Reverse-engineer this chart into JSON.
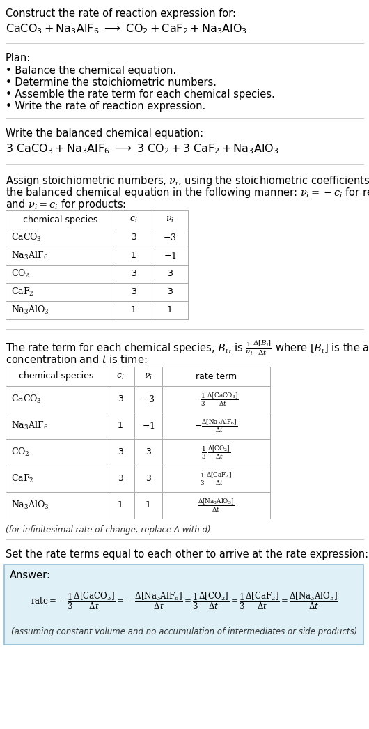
{
  "title_line1": "Construct the rate of reaction expression for:",
  "plan_header": "Plan:",
  "plan_items": [
    "• Balance the chemical equation.",
    "• Determine the stoichiometric numbers.",
    "• Assemble the rate term for each chemical species.",
    "• Write the rate of reaction expression."
  ],
  "balanced_header": "Write the balanced chemical equation:",
  "table1_rows": [
    [
      "CaCO_3",
      "3",
      "-3"
    ],
    [
      "Na_3AlF_6",
      "1",
      "-1"
    ],
    [
      "CO_2",
      "3",
      "3"
    ],
    [
      "CaF_2",
      "3",
      "3"
    ],
    [
      "Na_3AlO_3",
      "1",
      "1"
    ]
  ],
  "table2_rows": [
    [
      "CaCO_3",
      "3",
      "-3",
      "rt1"
    ],
    [
      "Na_3AlF_6",
      "1",
      "-1",
      "rt2"
    ],
    [
      "CO_2",
      "3",
      "3",
      "rt3"
    ],
    [
      "CaF_2",
      "3",
      "3",
      "rt4"
    ],
    [
      "Na_3AlO_3",
      "1",
      "1",
      "rt5"
    ]
  ],
  "infinitesimal_note": "(for infinitesimal rate of change, replace Δ with d)",
  "set_equal_text": "Set the rate terms equal to each other to arrive at the rate expression:",
  "answer_label": "Answer:",
  "assuming_note": "(assuming constant volume and no accumulation of intermediates or side products)",
  "bg_color": "#ffffff",
  "text_color": "#000000",
  "table_line_color": "#aaaaaa",
  "answer_box_fill": "#dff0f7",
  "answer_box_edge": "#90bcd4",
  "hline_color": "#cccccc"
}
